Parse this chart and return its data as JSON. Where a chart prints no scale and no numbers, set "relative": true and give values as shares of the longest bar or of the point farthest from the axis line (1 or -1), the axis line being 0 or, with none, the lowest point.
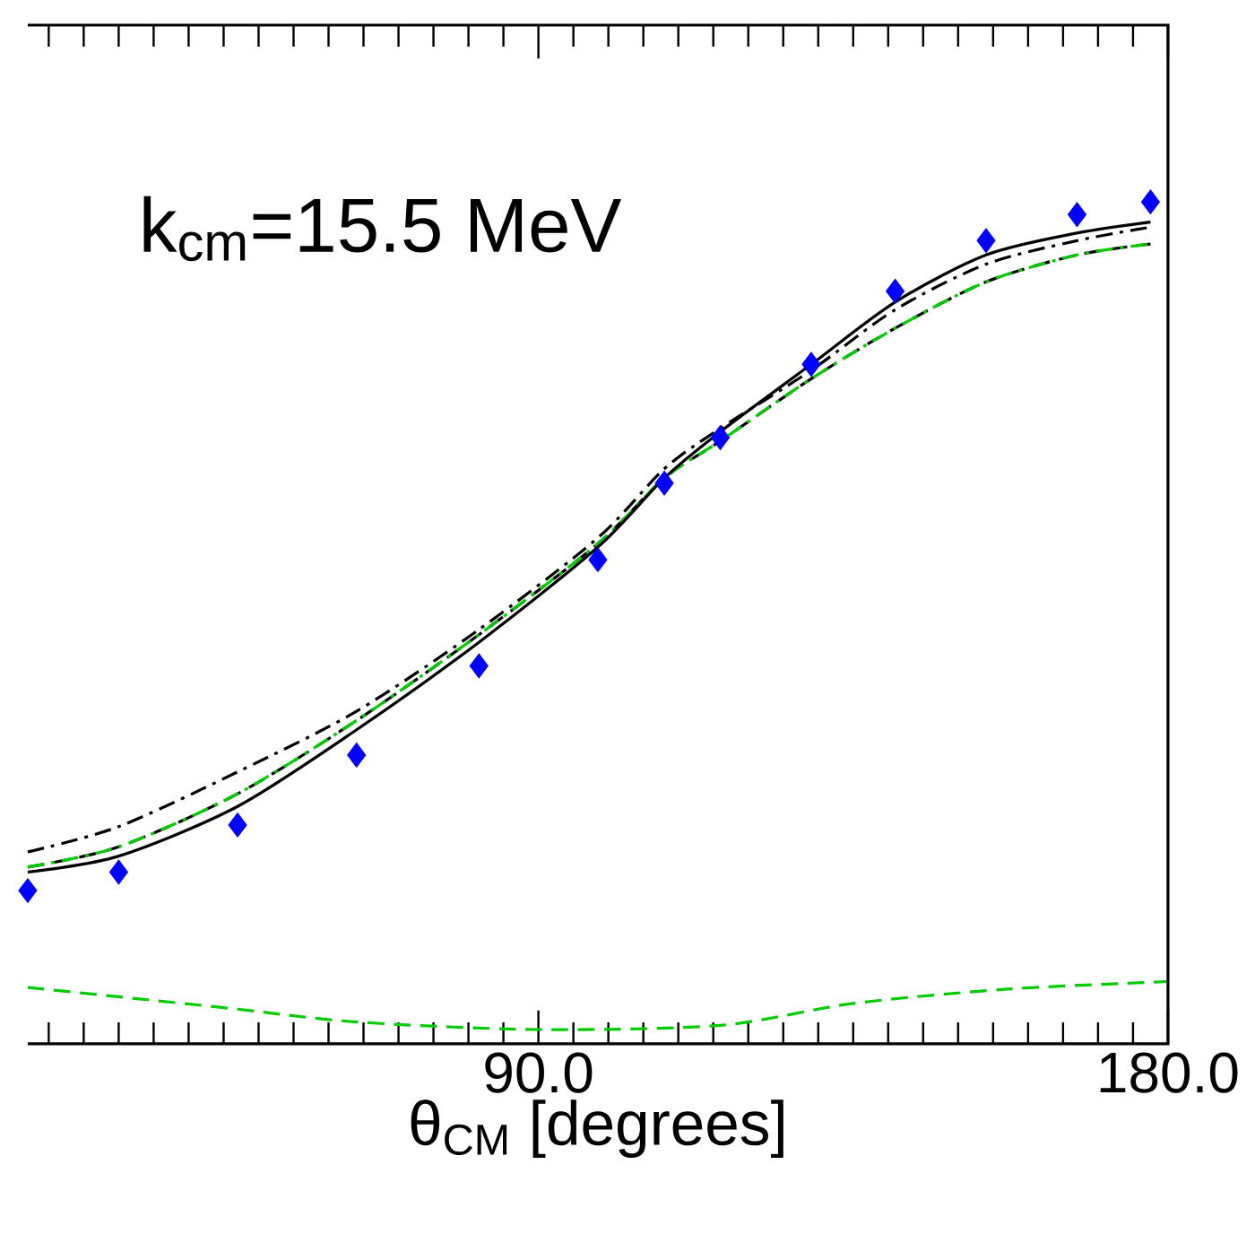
{
  "chart_data": {
    "type": "line",
    "relative": true,
    "xlabel": "θ$_{CM}$ [degrees]",
    "annotations": [
      "k$_{cm}$=15.5 MeV"
    ],
    "xlim": [
      17,
      180
    ],
    "xticks": [
      {
        "value": 90,
        "label": "90.0"
      },
      {
        "value": 180,
        "label": "180.0"
      }
    ],
    "grid": false,
    "series": [
      {
        "color": "#000000",
        "line_style": "dashdot",
        "marker": "none",
        "x": [
          17,
          30,
          47,
          64,
          81.5,
          98.5,
          108,
          116,
          129,
          141,
          154,
          167,
          177.5
        ],
        "values": [
          0.228,
          0.258,
          0.323,
          0.395,
          0.492,
          0.601,
          0.683,
          0.731,
          0.8,
          0.872,
          0.926,
          0.954,
          0.97
        ]
      },
      {
        "color": "#000000",
        "line_style": "dashed",
        "marker": "none",
        "x": [
          17,
          30,
          47,
          64,
          81.5,
          98.5,
          108,
          116,
          129,
          141,
          154,
          167,
          177.5
        ],
        "values": [
          0.21,
          0.234,
          0.297,
          0.384,
          0.486,
          0.594,
          0.672,
          0.716,
          0.79,
          0.85,
          0.905,
          0.937,
          0.95
        ]
      },
      {
        "color": "#00cc00",
        "line_style": "dashdot",
        "marker": "none",
        "x": [
          17,
          30,
          47,
          64,
          81.5,
          98.5,
          108,
          116,
          129,
          141,
          154,
          167,
          177.5
        ],
        "values": [
          0.21,
          0.234,
          0.297,
          0.384,
          0.486,
          0.594,
          0.672,
          0.716,
          0.79,
          0.85,
          0.905,
          0.937,
          0.95
        ]
      },
      {
        "color": "#000000",
        "line_style": "solid",
        "marker": "none",
        "x": [
          17,
          30,
          47,
          64,
          81.5,
          98.5,
          108,
          116,
          129,
          141,
          154,
          167,
          177.5
        ],
        "values": [
          0.204,
          0.223,
          0.282,
          0.373,
          0.477,
          0.59,
          0.672,
          0.727,
          0.807,
          0.881,
          0.937,
          0.963,
          0.976
        ]
      },
      {
        "color": "#00cc00",
        "line_style": "dashed",
        "marker": "none",
        "x": [
          17,
          45,
          64,
          90,
          116,
          135,
          157,
          180
        ],
        "values": [
          0.067,
          0.043,
          0.026,
          0.017,
          0.022,
          0.048,
          0.065,
          0.074
        ]
      },
      {
        "type": "scatter",
        "color": "#0000ff",
        "marker": "diamond",
        "x": [
          17,
          30,
          47,
          64,
          81.5,
          98.5,
          108,
          116,
          129,
          141,
          154,
          167,
          177.5
        ],
        "values": [
          0.182,
          0.204,
          0.26,
          0.343,
          0.449,
          0.575,
          0.666,
          0.72,
          0.807,
          0.894,
          0.954,
          0.985,
          1.0
        ]
      }
    ]
  }
}
